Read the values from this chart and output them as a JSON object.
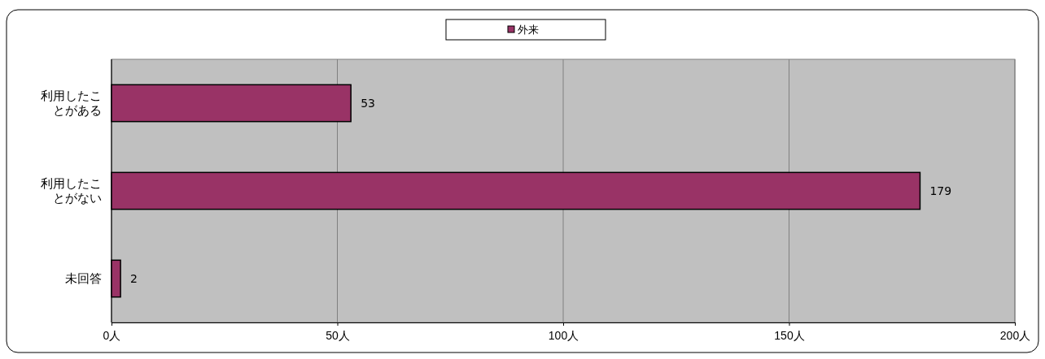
{
  "chart_data": {
    "type": "bar",
    "orientation": "horizontal",
    "categories": [
      "利用したことがある",
      "利用したことがない",
      "未回答"
    ],
    "series": [
      {
        "name": "外来",
        "color": "#993366",
        "values": [
          53,
          179,
          2
        ]
      }
    ],
    "xlim": [
      0,
      200
    ],
    "xticks": [
      {
        "value": 0,
        "label": "0人"
      },
      {
        "value": 50,
        "label": "50人"
      },
      {
        "value": 100,
        "label": "100人"
      },
      {
        "value": 150,
        "label": "150人"
      },
      {
        "value": 200,
        "label": "200人"
      }
    ],
    "grid": "x",
    "legend": "top",
    "data_labels": true
  }
}
